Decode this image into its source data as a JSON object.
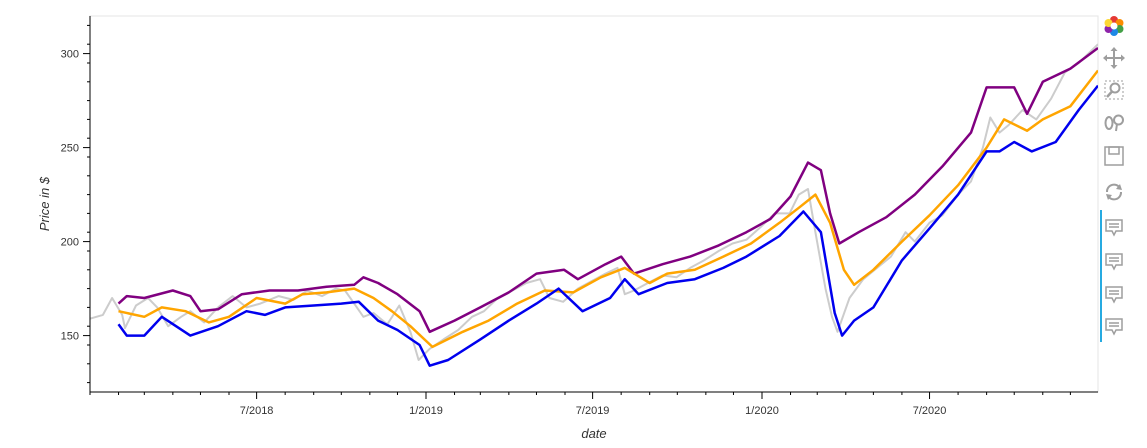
{
  "chart_data": {
    "type": "line",
    "title": "",
    "xlabel": "date",
    "ylabel": "Price in $",
    "x_range": [
      "2018-01-01",
      "2020-12-31"
    ],
    "ylim": [
      120,
      320
    ],
    "x_ticks": [
      {
        "date": "2018-07-01",
        "label": "7/2018"
      },
      {
        "date": "2019-01-01",
        "label": "1/2019"
      },
      {
        "date": "2019-07-01",
        "label": "7/2019"
      },
      {
        "date": "2020-01-01",
        "label": "1/2020"
      },
      {
        "date": "2020-07-01",
        "label": "7/2020"
      }
    ],
    "y_ticks": [
      150,
      200,
      250,
      300
    ],
    "grid": false,
    "series": [
      {
        "color": "#cccccc",
        "points": [
          [
            "2018-01-01",
            159
          ],
          [
            "2018-01-15",
            161
          ],
          [
            "2018-01-25",
            170
          ],
          [
            "2018-02-05",
            161
          ],
          [
            "2018-02-08",
            154
          ],
          [
            "2018-02-20",
            166
          ],
          [
            "2018-03-05",
            170
          ],
          [
            "2018-03-15",
            165
          ],
          [
            "2018-03-27",
            155
          ],
          [
            "2018-04-10",
            160
          ],
          [
            "2018-04-20",
            163
          ],
          [
            "2018-05-05",
            157
          ],
          [
            "2018-05-20",
            165
          ],
          [
            "2018-06-05",
            171
          ],
          [
            "2018-06-20",
            165
          ],
          [
            "2018-07-05",
            167
          ],
          [
            "2018-07-25",
            171
          ],
          [
            "2018-08-10",
            169
          ],
          [
            "2018-08-25",
            174
          ],
          [
            "2018-09-10",
            171
          ],
          [
            "2018-09-25",
            175
          ],
          [
            "2018-10-05",
            174
          ],
          [
            "2018-10-15",
            167
          ],
          [
            "2018-10-25",
            160
          ],
          [
            "2018-11-05",
            162
          ],
          [
            "2018-11-20",
            156
          ],
          [
            "2018-12-03",
            166
          ],
          [
            "2018-12-15",
            152
          ],
          [
            "2018-12-24",
            137
          ],
          [
            "2019-01-05",
            143
          ],
          [
            "2019-01-20",
            148
          ],
          [
            "2019-02-05",
            153
          ],
          [
            "2019-02-20",
            160
          ],
          [
            "2019-03-05",
            163
          ],
          [
            "2019-03-20",
            170
          ],
          [
            "2019-04-05",
            174
          ],
          [
            "2019-04-20",
            178
          ],
          [
            "2019-05-05",
            180
          ],
          [
            "2019-05-15",
            170
          ],
          [
            "2019-05-30",
            168
          ],
          [
            "2019-06-15",
            175
          ],
          [
            "2019-06-30",
            179
          ],
          [
            "2019-07-15",
            183
          ],
          [
            "2019-07-28",
            186
          ],
          [
            "2019-08-05",
            172
          ],
          [
            "2019-08-15",
            174
          ],
          [
            "2019-08-30",
            178
          ],
          [
            "2019-09-15",
            182
          ],
          [
            "2019-09-30",
            181
          ],
          [
            "2019-10-15",
            186
          ],
          [
            "2019-10-30",
            190
          ],
          [
            "2019-11-15",
            195
          ],
          [
            "2019-11-30",
            199
          ],
          [
            "2019-12-15",
            201
          ],
          [
            "2019-12-31",
            208
          ],
          [
            "2020-01-15",
            215
          ],
          [
            "2020-01-31",
            215
          ],
          [
            "2020-02-10",
            225
          ],
          [
            "2020-02-20",
            228
          ],
          [
            "2020-02-28",
            205
          ],
          [
            "2020-03-10",
            175
          ],
          [
            "2020-03-17",
            160
          ],
          [
            "2020-03-23",
            152
          ],
          [
            "2020-04-05",
            170
          ],
          [
            "2020-04-20",
            180
          ],
          [
            "2020-05-05",
            186
          ],
          [
            "2020-05-20",
            192
          ],
          [
            "2020-06-05",
            205
          ],
          [
            "2020-06-15",
            200
          ],
          [
            "2020-07-01",
            210
          ],
          [
            "2020-07-15",
            214
          ],
          [
            "2020-08-01",
            225
          ],
          [
            "2020-08-15",
            232
          ],
          [
            "2020-08-28",
            250
          ],
          [
            "2020-09-05",
            266
          ],
          [
            "2020-09-15",
            258
          ],
          [
            "2020-09-25",
            262
          ],
          [
            "2020-10-10",
            270
          ],
          [
            "2020-10-25",
            265
          ],
          [
            "2020-11-10",
            276
          ],
          [
            "2020-11-25",
            290
          ],
          [
            "2020-12-10",
            295
          ],
          [
            "2020-12-31",
            305
          ]
        ]
      },
      {
        "color": "#800080",
        "points": [
          [
            "2018-02-01",
            167
          ],
          [
            "2018-02-10",
            171
          ],
          [
            "2018-03-01",
            170
          ],
          [
            "2018-04-01",
            174
          ],
          [
            "2018-04-20",
            171
          ],
          [
            "2018-05-01",
            163
          ],
          [
            "2018-05-20",
            164
          ],
          [
            "2018-06-15",
            172
          ],
          [
            "2018-07-15",
            174
          ],
          [
            "2018-08-15",
            174
          ],
          [
            "2018-09-15",
            176
          ],
          [
            "2018-10-15",
            177
          ],
          [
            "2018-10-25",
            181
          ],
          [
            "2018-11-10",
            178
          ],
          [
            "2018-12-01",
            172
          ],
          [
            "2018-12-25",
            163
          ],
          [
            "2019-01-05",
            152
          ],
          [
            "2019-02-01",
            158
          ],
          [
            "2019-03-01",
            165
          ],
          [
            "2019-04-01",
            173
          ],
          [
            "2019-05-01",
            183
          ],
          [
            "2019-05-31",
            185
          ],
          [
            "2019-06-15",
            180
          ],
          [
            "2019-07-15",
            188
          ],
          [
            "2019-08-01",
            192
          ],
          [
            "2019-08-15",
            183
          ],
          [
            "2019-09-15",
            188
          ],
          [
            "2019-10-15",
            192
          ],
          [
            "2019-11-15",
            198
          ],
          [
            "2019-12-15",
            205
          ],
          [
            "2020-01-10",
            212
          ],
          [
            "2020-02-01",
            224
          ],
          [
            "2020-02-20",
            242
          ],
          [
            "2020-03-05",
            238
          ],
          [
            "2020-03-15",
            215
          ],
          [
            "2020-03-25",
            199
          ],
          [
            "2020-04-15",
            205
          ],
          [
            "2020-05-15",
            213
          ],
          [
            "2020-06-15",
            225
          ],
          [
            "2020-07-15",
            240
          ],
          [
            "2020-08-15",
            258
          ],
          [
            "2020-09-01",
            282
          ],
          [
            "2020-10-01",
            282
          ],
          [
            "2020-10-15",
            268
          ],
          [
            "2020-11-01",
            285
          ],
          [
            "2020-12-01",
            292
          ],
          [
            "2020-12-31",
            303
          ]
        ]
      },
      {
        "color": "#ffa500",
        "points": [
          [
            "2018-02-01",
            163
          ],
          [
            "2018-03-01",
            160
          ],
          [
            "2018-03-20",
            165
          ],
          [
            "2018-04-15",
            163
          ],
          [
            "2018-05-10",
            157
          ],
          [
            "2018-06-01",
            160
          ],
          [
            "2018-07-01",
            170
          ],
          [
            "2018-08-01",
            167
          ],
          [
            "2018-08-20",
            172
          ],
          [
            "2018-09-15",
            173
          ],
          [
            "2018-10-15",
            175
          ],
          [
            "2018-11-05",
            170
          ],
          [
            "2018-11-25",
            163
          ],
          [
            "2018-12-15",
            155
          ],
          [
            "2019-01-08",
            144
          ],
          [
            "2019-02-10",
            152
          ],
          [
            "2019-03-10",
            158
          ],
          [
            "2019-04-10",
            167
          ],
          [
            "2019-05-10",
            174
          ],
          [
            "2019-06-10",
            173
          ],
          [
            "2019-07-10",
            181
          ],
          [
            "2019-08-05",
            186
          ],
          [
            "2019-09-01",
            178
          ],
          [
            "2019-09-20",
            183
          ],
          [
            "2019-10-20",
            185
          ],
          [
            "2019-11-20",
            192
          ],
          [
            "2019-12-20",
            199
          ],
          [
            "2020-01-20",
            210
          ],
          [
            "2020-02-10",
            218
          ],
          [
            "2020-02-28",
            225
          ],
          [
            "2020-03-15",
            210
          ],
          [
            "2020-03-30",
            185
          ],
          [
            "2020-04-10",
            177
          ],
          [
            "2020-05-01",
            185
          ],
          [
            "2020-06-01",
            200
          ],
          [
            "2020-07-01",
            214
          ],
          [
            "2020-08-01",
            230
          ],
          [
            "2020-09-01",
            250
          ],
          [
            "2020-09-20",
            265
          ],
          [
            "2020-10-15",
            259
          ],
          [
            "2020-11-01",
            265
          ],
          [
            "2020-12-01",
            272
          ],
          [
            "2020-12-31",
            291
          ]
        ]
      },
      {
        "color": "#0000ee",
        "points": [
          [
            "2018-02-01",
            156
          ],
          [
            "2018-02-10",
            150
          ],
          [
            "2018-03-01",
            150
          ],
          [
            "2018-03-20",
            160
          ],
          [
            "2018-04-20",
            150
          ],
          [
            "2018-05-20",
            155
          ],
          [
            "2018-06-20",
            163
          ],
          [
            "2018-07-10",
            161
          ],
          [
            "2018-08-01",
            165
          ],
          [
            "2018-09-01",
            166
          ],
          [
            "2018-10-01",
            167
          ],
          [
            "2018-10-20",
            168
          ],
          [
            "2018-11-10",
            158
          ],
          [
            "2018-12-01",
            153
          ],
          [
            "2018-12-25",
            145
          ],
          [
            "2019-01-05",
            134
          ],
          [
            "2019-01-25",
            137
          ],
          [
            "2019-03-01",
            148
          ],
          [
            "2019-04-01",
            158
          ],
          [
            "2019-05-01",
            167
          ],
          [
            "2019-05-25",
            175
          ],
          [
            "2019-06-20",
            163
          ],
          [
            "2019-07-20",
            170
          ],
          [
            "2019-08-05",
            180
          ],
          [
            "2019-08-20",
            172
          ],
          [
            "2019-09-20",
            178
          ],
          [
            "2019-10-20",
            180
          ],
          [
            "2019-11-20",
            186
          ],
          [
            "2019-12-15",
            192
          ],
          [
            "2020-01-20",
            203
          ],
          [
            "2020-02-15",
            216
          ],
          [
            "2020-03-05",
            205
          ],
          [
            "2020-03-20",
            162
          ],
          [
            "2020-03-28",
            150
          ],
          [
            "2020-04-10",
            158
          ],
          [
            "2020-05-01",
            165
          ],
          [
            "2020-06-01",
            190
          ],
          [
            "2020-07-01",
            207
          ],
          [
            "2020-08-01",
            225
          ],
          [
            "2020-09-01",
            248
          ],
          [
            "2020-09-15",
            248
          ],
          [
            "2020-10-01",
            253
          ],
          [
            "2020-10-20",
            248
          ],
          [
            "2020-11-15",
            253
          ],
          [
            "2020-12-10",
            270
          ],
          [
            "2020-12-31",
            283
          ]
        ]
      }
    ]
  },
  "toolbar": {
    "tools": [
      {
        "name": "bokeh-logo",
        "icon": "bokeh-logo-icon"
      },
      {
        "name": "pan",
        "icon": "pan-icon"
      },
      {
        "name": "box-zoom",
        "icon": "box-zoom-icon"
      },
      {
        "name": "wheel-zoom",
        "icon": "wheel-zoom-icon"
      },
      {
        "name": "save",
        "icon": "save-icon"
      },
      {
        "name": "reset",
        "icon": "reset-icon"
      },
      {
        "name": "hover-1",
        "icon": "hover-icon"
      },
      {
        "name": "hover-2",
        "icon": "hover-icon"
      },
      {
        "name": "hover-3",
        "icon": "hover-icon"
      },
      {
        "name": "hover-4",
        "icon": "hover-icon"
      }
    ]
  }
}
